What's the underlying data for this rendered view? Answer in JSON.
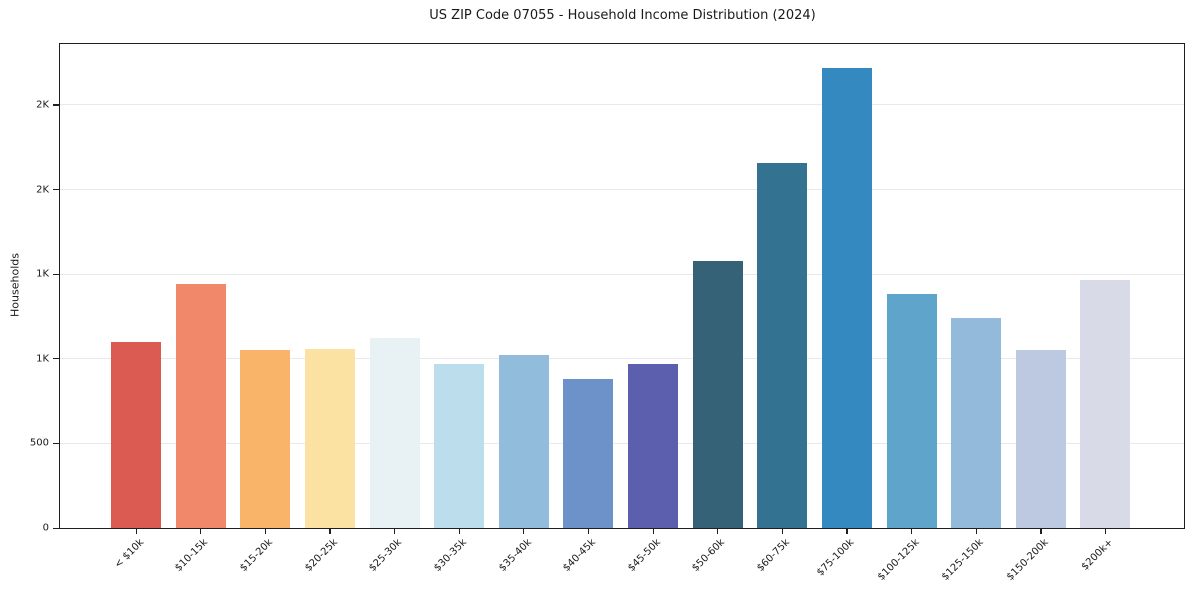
{
  "figure": {
    "background": "#ffffff"
  },
  "chart_data": {
    "type": "bar",
    "title": "US ZIP Code 07055 - Household Income Distribution (2024)",
    "xlabel": "",
    "ylabel": "Households",
    "categories": [
      "< $10k",
      "$10-15k",
      "$15-20k",
      "$20-25k",
      "$25-30k",
      "$30-35k",
      "$35-40k",
      "$40-45k",
      "$45-50k",
      "$50-60k",
      "$60-75k",
      "$75-100k",
      "$100-125k",
      "$125-150k",
      "$150-200k",
      "$200k+"
    ],
    "values": [
      1100,
      1440,
      1050,
      1055,
      1125,
      970,
      1025,
      880,
      970,
      1580,
      2155,
      2720,
      1385,
      1240,
      1050,
      1465
    ],
    "bar_colors": [
      "#db5a52",
      "#f1886a",
      "#f9b469",
      "#fce2a2",
      "#e8f1f4",
      "#bcdeec",
      "#92bcdc",
      "#6d92c9",
      "#5b5fae",
      "#366277",
      "#337291",
      "#3389c0",
      "#5fa5cb",
      "#94badb",
      "#bcc9e0",
      "#d9dae8"
    ],
    "ylim": [
      0,
      2860
    ],
    "yticks": [
      {
        "value": 0,
        "label": "0"
      },
      {
        "value": 500,
        "label": "500"
      },
      {
        "value": 1000,
        "label": "1K"
      },
      {
        "value": 1500,
        "label": "1K"
      },
      {
        "value": 2000,
        "label": "2K"
      },
      {
        "value": 2500,
        "label": "2K"
      }
    ],
    "grid": "horizontal-light",
    "legend": "none",
    "axis_color": "#1f1f1f",
    "grid_color": "#e9e9ed",
    "background": "#ffffff"
  }
}
